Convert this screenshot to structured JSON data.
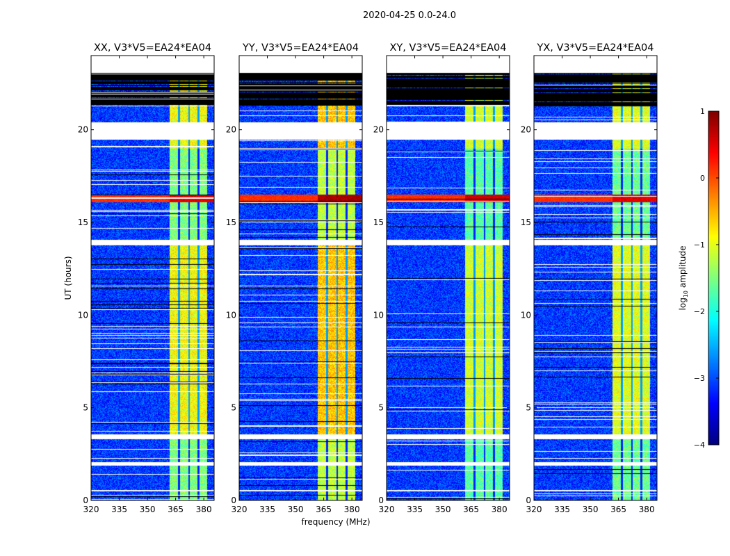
{
  "chart_data": {
    "type": "heatmap",
    "suptitle": "2020-04-25 0.0-24.0",
    "xlabel": "frequency (MHz)",
    "ylabel": "UT (hours)",
    "xlim": [
      320,
      385.5
    ],
    "ylim": [
      0,
      24
    ],
    "xticks": [
      "320",
      "335",
      "350",
      "365",
      "380"
    ],
    "xtick_values": [
      320,
      335,
      350,
      365,
      380
    ],
    "yticks": [
      "0",
      "5",
      "10",
      "15",
      "20"
    ],
    "ytick_values": [
      0,
      5,
      10,
      15,
      20
    ],
    "panels": [
      {
        "title": "XX, V3*V5=EA24*EA04",
        "band_level": -0.9,
        "rfi_level": 0.3
      },
      {
        "title": "YY, V3*V5=EA24*EA04",
        "band_level": -0.6,
        "rfi_level": 0.6
      },
      {
        "title": "XY, V3*V5=EA24*EA04",
        "band_level": -1.1,
        "rfi_level": 0.4
      },
      {
        "title": "YX, V3*V5=EA24*EA04",
        "band_level": -1.0,
        "rfi_level": 0.3
      }
    ],
    "bright_band_mhz": [
      361.5,
      381.5
    ],
    "background_level": -3.1,
    "rfi_hours": [
      16.1,
      16.5
    ],
    "flagged_hours": [
      [
        23.1,
        24.0
      ],
      [
        19.5,
        20.4
      ],
      [
        3.3,
        3.6
      ],
      [
        1.9,
        2.1
      ],
      [
        0.5,
        0.6
      ],
      [
        13.8,
        14.1
      ]
    ],
    "blank_hours": [
      [
        21.3,
        23.1
      ]
    ],
    "colorbar": {
      "label": "log10 amplitude",
      "label_main": "log",
      "label_sub": "10",
      "label_rest": " amplitude",
      "range": [
        -4,
        1
      ],
      "ticks": [
        "1",
        "0",
        "−1",
        "−2",
        "−3",
        "−4"
      ],
      "tick_values": [
        1,
        0,
        -1,
        -2,
        -3,
        -4
      ],
      "colormap": "jet"
    }
  }
}
